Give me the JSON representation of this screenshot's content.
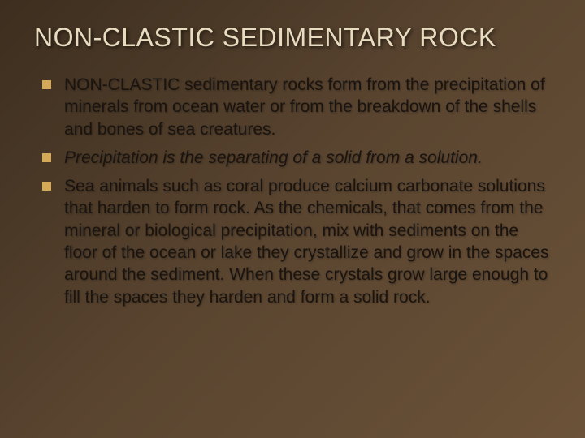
{
  "slide": {
    "title": "NON-CLASTIC SEDIMENTARY ROCK",
    "title_color": "#e8dcc0",
    "title_fontsize": 32,
    "background_gradient": [
      "#3d2e1f",
      "#5a4530",
      "#6b5238"
    ],
    "bullet_color": "#d4a958",
    "bullet_size": 11,
    "text_color": "#1a1410",
    "text_fontsize": 21,
    "bullets": [
      {
        "text": "NON-CLASTIC sedimentary rocks form from the precipitation of minerals from ocean water or from the breakdown of the shells and bones of sea creatures.",
        "italic": false
      },
      {
        "text": "Precipitation is the separating of a solid from a solution.",
        "italic": true
      },
      {
        "text": "Sea animals such as coral produce calcium carbonate solutions that harden to form rock. As the chemicals, that comes from the mineral or biological precipitation, mix with sediments on the floor of the ocean or lake they crystallize and grow in the spaces around the sediment. When these crystals grow large enough to fill the spaces they harden and form a solid rock.",
        "italic": false
      }
    ]
  }
}
